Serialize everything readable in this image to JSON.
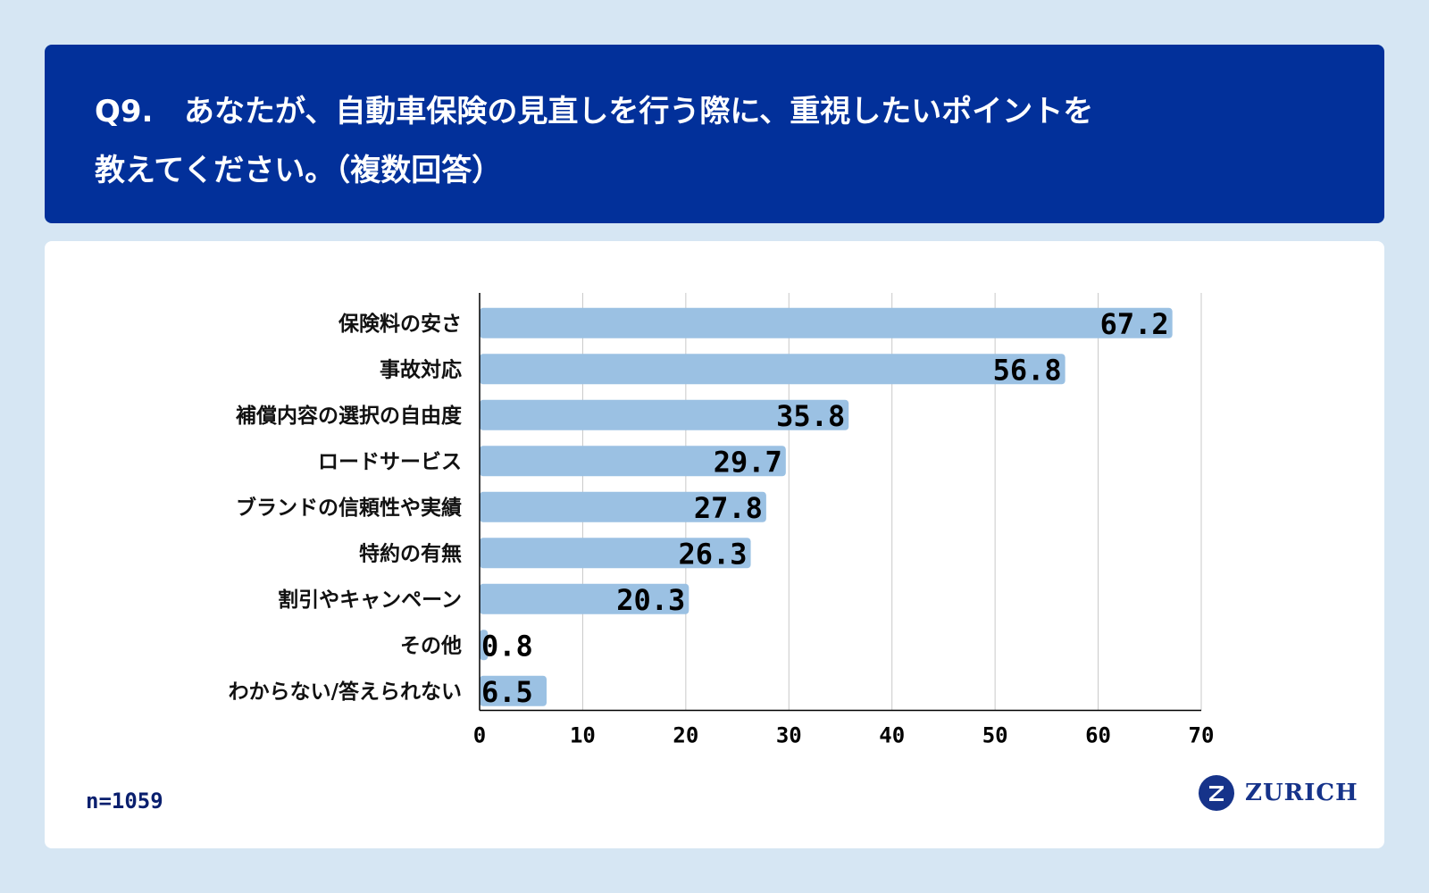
{
  "header": {
    "question_number": "Q9.",
    "title_line1": "あなたが、自動車保険の見直しを行う際に、重視したいポイントを",
    "title_line2": "教えてください。（複数回答）"
  },
  "chart_data": {
    "type": "bar",
    "orientation": "horizontal",
    "categories": [
      "保険料の安さ",
      "事故対応",
      "補償内容の選択の自由度",
      "ロードサービス",
      "ブランドの信頼性や実績",
      "特約の有無",
      "割引やキャンペーン",
      "その他",
      "わからない/答えられない"
    ],
    "values": [
      67.2,
      56.8,
      35.8,
      29.7,
      27.8,
      26.3,
      20.3,
      0.8,
      6.5
    ],
    "value_labels": [
      "67.2",
      "56.8",
      "35.8",
      "29.7",
      "27.8",
      "26.3",
      "20.3",
      "0.8",
      "6.5"
    ],
    "xlim": [
      0,
      70
    ],
    "x_ticks": [
      "0",
      "10",
      "20",
      "30",
      "40",
      "50",
      "60",
      "70"
    ],
    "grid": true,
    "bar_color": "#9bc1e3",
    "grid_color": "#c8c8c8"
  },
  "footer": {
    "sample_size": "n=1059",
    "logo_text": "ZURICH",
    "logo_mark": "Z"
  },
  "colors": {
    "header_bg": "#02309a",
    "page_bg": "#d6e6f3",
    "logo": "#16338a"
  }
}
